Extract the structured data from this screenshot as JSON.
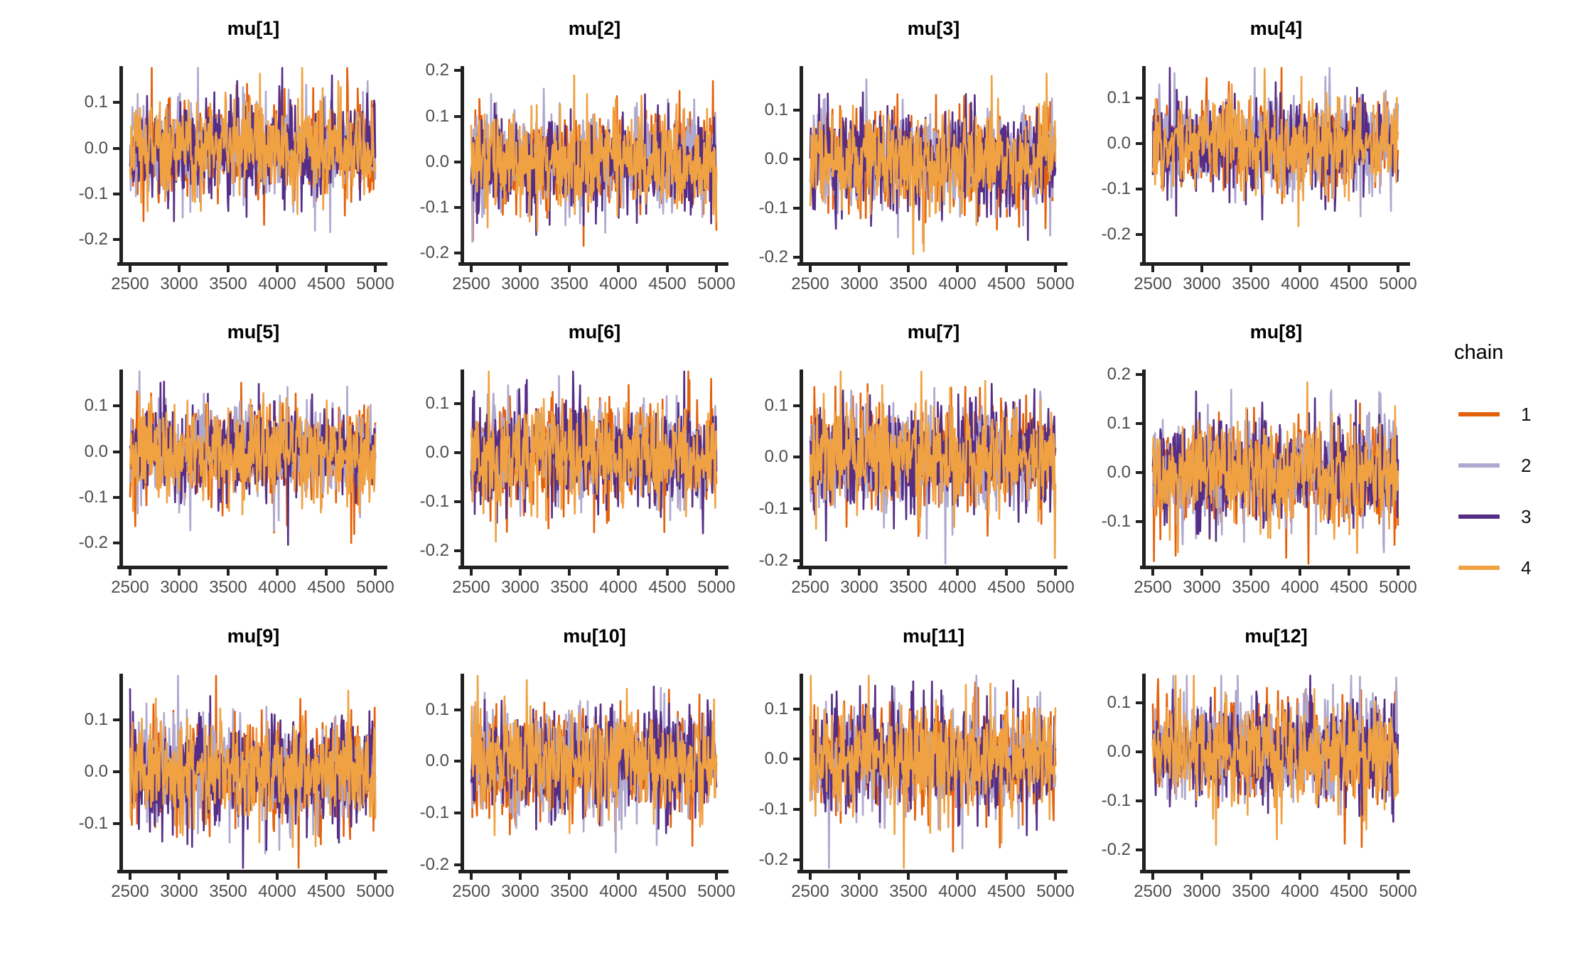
{
  "legend": {
    "title": "chain",
    "position": "right"
  },
  "chart_data": {
    "type": "line",
    "subtype": "mcmc-trace-grid",
    "grid": {
      "rows": 3,
      "cols": 4
    },
    "background": "#FFFFFF",
    "axis_color": "#212121",
    "tick_label_color": "#4D4D4D",
    "x_axis": {
      "range": [
        2500,
        5000
      ],
      "ticks": [
        {
          "label": "2500",
          "v": 2500
        },
        {
          "label": "3000",
          "v": 3000
        },
        {
          "label": "3500",
          "v": 3500
        },
        {
          "label": "4000",
          "v": 4000
        },
        {
          "label": "4500",
          "v": 4500
        },
        {
          "label": "5000",
          "v": 5000
        }
      ]
    },
    "chains": [
      {
        "label": "1",
        "color": "#E4610B"
      },
      {
        "label": "2",
        "color": "#AFA8CF"
      },
      {
        "label": "3",
        "color": "#552D87"
      },
      {
        "label": "4",
        "color": "#F0A243"
      }
    ],
    "series_model": {
      "description": "stationary MCMC traces centered at 0",
      "mean": 0,
      "sd": 0.05,
      "spike_prob": 0.035,
      "spike_extra": [
        0.04,
        0.13
      ],
      "points_per_chain": 420,
      "seed": 12345
    },
    "panels": [
      {
        "title": "mu[1]",
        "ylim": [
          -0.25,
          0.18
        ],
        "y_ticks": [
          {
            "label": "0.1",
            "v": 0.1
          },
          {
            "label": "0.0",
            "v": 0.0
          },
          {
            "label": "-0.1",
            "v": -0.1
          },
          {
            "label": "-0.2",
            "v": -0.2
          }
        ]
      },
      {
        "title": "mu[2]",
        "ylim": [
          -0.22,
          0.21
        ],
        "y_ticks": [
          {
            "label": "0.2",
            "v": 0.2
          },
          {
            "label": "0.1",
            "v": 0.1
          },
          {
            "label": "0.0",
            "v": 0.0
          },
          {
            "label": "-0.1",
            "v": -0.1
          },
          {
            "label": "-0.2",
            "v": -0.2
          }
        ]
      },
      {
        "title": "mu[3]",
        "ylim": [
          -0.21,
          0.19
        ],
        "y_ticks": [
          {
            "label": "0.1",
            "v": 0.1
          },
          {
            "label": "0.0",
            "v": 0.0
          },
          {
            "label": "-0.1",
            "v": -0.1
          },
          {
            "label": "-0.2",
            "v": -0.2
          }
        ]
      },
      {
        "title": "mu[4]",
        "ylim": [
          -0.26,
          0.17
        ],
        "y_ticks": [
          {
            "label": "0.1",
            "v": 0.1
          },
          {
            "label": "0.0",
            "v": 0.0
          },
          {
            "label": "-0.1",
            "v": -0.1
          },
          {
            "label": "-0.2",
            "v": -0.2
          }
        ]
      },
      {
        "title": "mu[5]",
        "ylim": [
          -0.25,
          0.18
        ],
        "y_ticks": [
          {
            "label": "0.1",
            "v": 0.1
          },
          {
            "label": "0.0",
            "v": 0.0
          },
          {
            "label": "-0.1",
            "v": -0.1
          },
          {
            "label": "-0.2",
            "v": -0.2
          }
        ]
      },
      {
        "title": "mu[6]",
        "ylim": [
          -0.23,
          0.17
        ],
        "y_ticks": [
          {
            "label": "0.1",
            "v": 0.1
          },
          {
            "label": "0.0",
            "v": 0.0
          },
          {
            "label": "-0.1",
            "v": -0.1
          },
          {
            "label": "-0.2",
            "v": -0.2
          }
        ]
      },
      {
        "title": "mu[7]",
        "ylim": [
          -0.21,
          0.17
        ],
        "y_ticks": [
          {
            "label": "0.1",
            "v": 0.1
          },
          {
            "label": "0.0",
            "v": 0.0
          },
          {
            "label": "-0.1",
            "v": -0.1
          },
          {
            "label": "-0.2",
            "v": -0.2
          }
        ]
      },
      {
        "title": "mu[8]",
        "ylim": [
          -0.19,
          0.21
        ],
        "y_ticks": [
          {
            "label": "0.2",
            "v": 0.2
          },
          {
            "label": "0.1",
            "v": 0.1
          },
          {
            "label": "0.0",
            "v": 0.0
          },
          {
            "label": "-0.1",
            "v": -0.1
          }
        ]
      },
      {
        "title": "mu[9]",
        "ylim": [
          -0.19,
          0.19
        ],
        "y_ticks": [
          {
            "label": "0.1",
            "v": 0.1
          },
          {
            "label": "0.0",
            "v": 0.0
          },
          {
            "label": "-0.1",
            "v": -0.1
          }
        ]
      },
      {
        "title": "mu[10]",
        "ylim": [
          -0.21,
          0.17
        ],
        "y_ticks": [
          {
            "label": "0.1",
            "v": 0.1
          },
          {
            "label": "0.0",
            "v": 0.0
          },
          {
            "label": "-0.1",
            "v": -0.1
          },
          {
            "label": "-0.2",
            "v": -0.2
          }
        ]
      },
      {
        "title": "mu[11]",
        "ylim": [
          -0.22,
          0.17
        ],
        "y_ticks": [
          {
            "label": "0.1",
            "v": 0.1
          },
          {
            "label": "0.0",
            "v": 0.0
          },
          {
            "label": "-0.1",
            "v": -0.1
          },
          {
            "label": "-0.2",
            "v": -0.2
          }
        ]
      },
      {
        "title": "mu[12]",
        "ylim": [
          -0.24,
          0.16
        ],
        "y_ticks": [
          {
            "label": "0.1",
            "v": 0.1
          },
          {
            "label": "0.0",
            "v": 0.0
          },
          {
            "label": "-0.1",
            "v": -0.1
          },
          {
            "label": "-0.2",
            "v": -0.2
          }
        ]
      }
    ]
  }
}
